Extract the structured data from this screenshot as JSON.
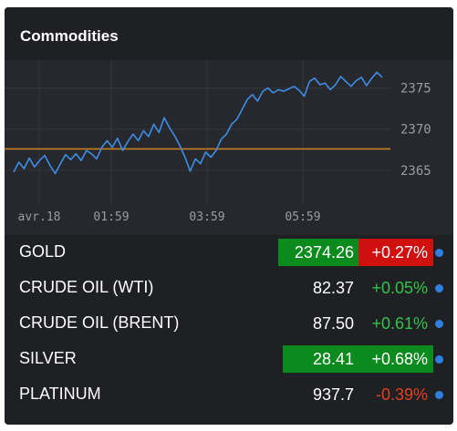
{
  "widget": {
    "title": "Commodities"
  },
  "chart_data": {
    "type": "line",
    "x_ticks": [
      "avr.18",
      "01:59",
      "03:59",
      "05:59"
    ],
    "y_ticks": [
      2365,
      2370,
      2375
    ],
    "ylim": [
      2362,
      2377.5
    ],
    "reference_value": 2367.6,
    "line_color": "#3d8ee6",
    "reference_color": "#c5801f",
    "series": [
      {
        "values": [
          2364.8,
          2366.0,
          2365.2,
          2366.5,
          2365.4,
          2366.2,
          2366.8,
          2365.6,
          2364.6,
          2365.8,
          2366.9,
          2366.3,
          2367.0,
          2366.2,
          2367.4,
          2367.0,
          2366.4,
          2367.8,
          2368.6,
          2367.8,
          2368.9,
          2367.4,
          2368.5,
          2369.4,
          2368.6,
          2369.8,
          2369.1,
          2370.6,
          2369.6,
          2371.4,
          2370.2,
          2369.2,
          2368.0,
          2366.6,
          2364.9,
          2366.4,
          2365.8,
          2367.2,
          2366.6,
          2367.4,
          2368.8,
          2369.4,
          2370.6,
          2371.2,
          2372.4,
          2373.6,
          2374.2,
          2373.4,
          2374.6,
          2375.0,
          2374.4,
          2374.8,
          2374.6,
          2374.9,
          2375.2,
          2374.7,
          2374.0,
          2375.8,
          2376.2,
          2375.4,
          2375.6,
          2374.8,
          2375.4,
          2376.4,
          2375.8,
          2375.2,
          2375.9,
          2376.3,
          2375.3,
          2376.2,
          2376.9,
          2376.3
        ]
      }
    ]
  },
  "quotes": [
    {
      "name": "GOLD",
      "price": "2374.26",
      "change": "+0.27%",
      "price_highlight": "#0b8a1d",
      "change_highlight": "#d00f0f",
      "change_color": "#ffffff"
    },
    {
      "name": "CRUDE OIL (WTI)",
      "price": "82.37",
      "change": "+0.05%",
      "price_highlight": "",
      "change_highlight": "",
      "change_color": "#33c24a"
    },
    {
      "name": "CRUDE OIL (BRENT)",
      "price": "87.50",
      "change": "+0.61%",
      "price_highlight": "",
      "change_highlight": "",
      "change_color": "#33c24a"
    },
    {
      "name": "SILVER",
      "price": "28.41",
      "change": "+0.68%",
      "price_highlight": "#0b8a1d",
      "change_highlight": "#0b8a1d",
      "change_color": "#ffffff"
    },
    {
      "name": "PLATINUM",
      "price": "937.7",
      "change": "-0.39%",
      "price_highlight": "",
      "change_highlight": "",
      "change_color": "#e0401f"
    }
  ]
}
